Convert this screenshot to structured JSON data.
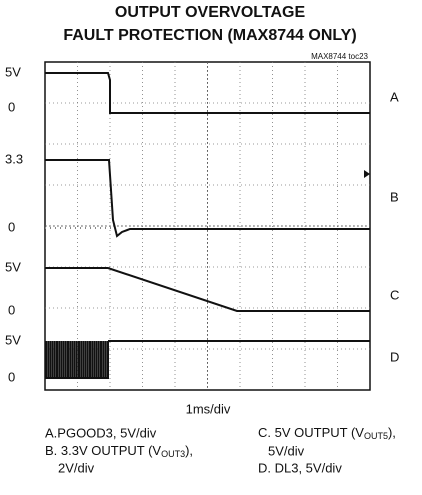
{
  "title": {
    "line1": "OUTPUT OVERVOLTAGE",
    "line2": "FAULT PROTECTION (MAX8744 ONLY)"
  },
  "figure_id": "MAX8744 toc23",
  "left_labels": [
    "5V",
    "0",
    "3.3",
    "0",
    "5V",
    "0",
    "5V",
    "0"
  ],
  "trace_labels": [
    "A",
    "B",
    "C",
    "D"
  ],
  "time_scale": "1ms/div",
  "legend": {
    "a": "A.PGOOD3, 5V/div",
    "b": {
      "pre": "B. 3.3V OUTPUT (V",
      "sub": "OUT3",
      "post": "),",
      "line2": "2V/div"
    },
    "c": {
      "pre": "C. 5V OUTPUT (V",
      "sub": "OUT5",
      "post": "),",
      "line2": "5V/div"
    },
    "d": "D. DL3, 5V/div"
  }
}
